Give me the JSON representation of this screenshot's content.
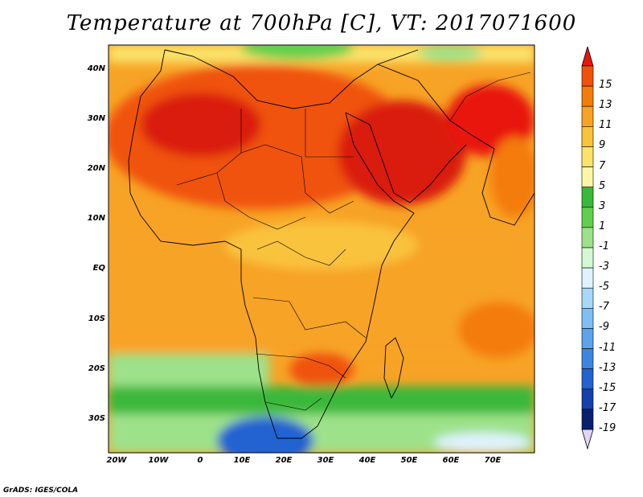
{
  "title": "Temperature at 700hPa [C], VT: 2017071600",
  "credit": "GrADS: IGES/COLA",
  "lat_labels": [
    "40N",
    "30N",
    "20N",
    "10N",
    "EQ",
    "10S",
    "20S",
    "30S"
  ],
  "lon_labels": [
    "20W",
    "10W",
    "0",
    "10E",
    "20E",
    "30E",
    "40E",
    "50E",
    "60E",
    "70E"
  ],
  "colorbar": {
    "labels": [
      "15",
      "13",
      "11",
      "9",
      "7",
      "5",
      "3",
      "1",
      "-1",
      "-3",
      "-5",
      "-7",
      "-9",
      "-11",
      "-13",
      "-15",
      "-17",
      "-19"
    ],
    "colors": [
      "#e8150d",
      "#f0520a",
      "#f47c0a",
      "#f7a325",
      "#f9c33c",
      "#fbe36a",
      "#fbf7a6",
      "#3ab83a",
      "#62cf4e",
      "#9de28a",
      "#d3f8d3",
      "#dff3ff",
      "#a5d9f7",
      "#7fc0f2",
      "#5ba4eb",
      "#3d86e0",
      "#2262d1",
      "#1340ab",
      "#0a1f6d",
      "#e1d4f5"
    ]
  },
  "colors": {
    "warmest": "#d91a0b",
    "warm": "#f0520a",
    "mid": "#f7a325",
    "cool_land": "#4fc24f",
    "cold_ocean": "#2262d1"
  }
}
